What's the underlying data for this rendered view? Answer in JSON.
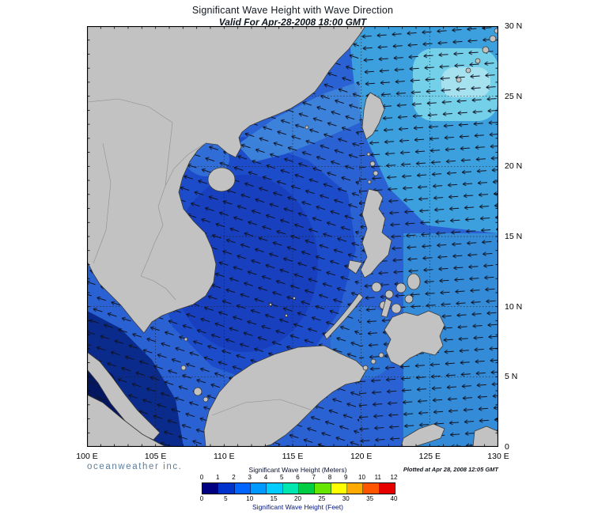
{
  "header": {
    "title": "Significant Wave Height with Wave Direction",
    "subtitle": "Valid For Apr-28-2008 18:00 GMT"
  },
  "axes": {
    "lat": [
      "30 N",
      "25 N",
      "20 N",
      "15 N",
      "10 N",
      "5 N",
      "0"
    ],
    "lon": [
      "100 E",
      "105 E",
      "110 E",
      "115 E",
      "120 E",
      "125 E",
      "130 E"
    ]
  },
  "legend": {
    "meters_label": "Significant Wave Height (Meters)",
    "feet_label": "Significant Wave Height (Feet)",
    "meters_ticks": [
      "0",
      "1",
      "2",
      "3",
      "4",
      "5",
      "6",
      "7",
      "8",
      "9",
      "10",
      "11",
      "12"
    ],
    "feet_ticks": [
      "0",
      "5",
      "10",
      "15",
      "20",
      "25",
      "30",
      "35",
      "40"
    ],
    "colors": [
      "#000080",
      "#0033cc",
      "#0066ff",
      "#0099ff",
      "#00ccff",
      "#00e6b0",
      "#00cc44",
      "#66e600",
      "#ffff00",
      "#ffaa00",
      "#ff5500",
      "#e60000"
    ]
  },
  "footer": {
    "brand": "oceanweather inc.",
    "plotted": "Plotted at Apr 28, 2008 12:05 GMT"
  },
  "map_palette": {
    "ocean_base": "#2a62d4",
    "ocean_deep": "#173fbe",
    "ocean_dark": "#041660",
    "ocean_light": "#3da0de",
    "ocean_cyan": "#74cfe9",
    "land": "#c2c2c2"
  }
}
